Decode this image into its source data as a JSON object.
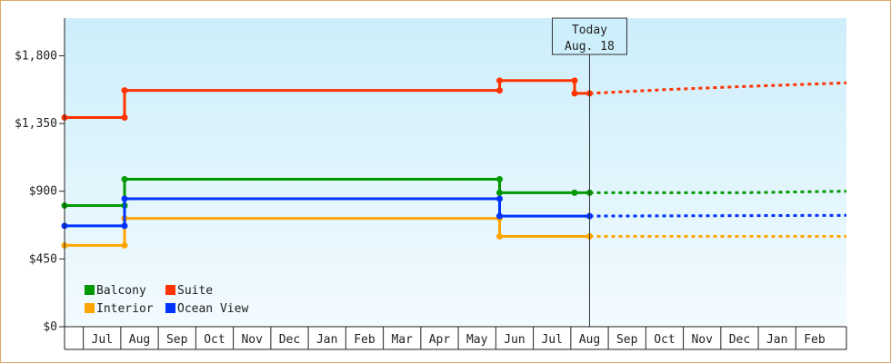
{
  "chart_data": {
    "type": "line",
    "style": "step",
    "title": "",
    "xlabel": "",
    "ylabel": "",
    "ylim": [
      0,
      2050
    ],
    "y_ticks": [
      "$0",
      "$450",
      "$900",
      "$1,350",
      "$1,800"
    ],
    "y_tick_values": [
      0,
      450,
      900,
      1350,
      1800
    ],
    "x_ticks": [
      "Jul",
      "Aug",
      "Sep",
      "Oct",
      "Nov",
      "Dec",
      "Jan",
      "Feb",
      "Mar",
      "Apr",
      "May",
      "Jun",
      "Jul",
      "Aug",
      "Sep",
      "Oct",
      "Nov",
      "Dec",
      "Jan",
      "Feb"
    ],
    "x_tick_months": [
      1,
      2,
      3,
      4,
      5,
      6,
      7,
      8,
      9,
      10,
      11,
      12,
      13,
      14,
      15,
      16,
      17,
      18,
      19,
      20
    ],
    "x_unit": "months since start of June (year 1)",
    "x_range": [
      0.0,
      20.85
    ],
    "today": {
      "line1": "Today",
      "line2": "Aug. 18",
      "x": 14.0
    },
    "grid": false,
    "legend_position": "bottom-left",
    "series": [
      {
        "name": "Balcony",
        "color": "#009900",
        "points": [
          [
            0.0,
            805
          ],
          [
            1.6,
            805
          ],
          [
            1.6,
            980
          ],
          [
            11.6,
            980
          ],
          [
            11.6,
            890
          ],
          [
            13.6,
            890
          ],
          [
            14.0,
            890
          ]
        ],
        "markers": [
          [
            0.0,
            805
          ],
          [
            1.6,
            805
          ],
          [
            1.6,
            980
          ],
          [
            11.6,
            980
          ],
          [
            11.6,
            890
          ],
          [
            13.6,
            890
          ],
          [
            14.0,
            890
          ]
        ],
        "forecast": [
          [
            14.0,
            890
          ],
          [
            18.0,
            890
          ],
          [
            20.85,
            900
          ]
        ]
      },
      {
        "name": "Suite",
        "color": "#ff3300",
        "points": [
          [
            0.0,
            1390
          ],
          [
            1.6,
            1390
          ],
          [
            1.6,
            1570
          ],
          [
            11.6,
            1570
          ],
          [
            11.6,
            1635
          ],
          [
            13.6,
            1635
          ],
          [
            13.6,
            1550
          ],
          [
            14.0,
            1550
          ]
        ],
        "markers": [
          [
            0.0,
            1390
          ],
          [
            1.6,
            1390
          ],
          [
            1.6,
            1570
          ],
          [
            11.6,
            1570
          ],
          [
            11.6,
            1635
          ],
          [
            13.6,
            1635
          ],
          [
            13.6,
            1550
          ],
          [
            14.0,
            1550
          ]
        ],
        "forecast": [
          [
            14.0,
            1550
          ],
          [
            16.0,
            1575
          ],
          [
            18.0,
            1595
          ],
          [
            20.85,
            1620
          ]
        ]
      },
      {
        "name": "Interior",
        "color": "#ffa500",
        "points": [
          [
            0.0,
            540
          ],
          [
            1.6,
            540
          ],
          [
            1.6,
            720
          ],
          [
            11.6,
            720
          ],
          [
            11.6,
            600
          ],
          [
            14.0,
            600
          ]
        ],
        "markers": [
          [
            0.0,
            540
          ],
          [
            1.6,
            540
          ],
          [
            1.6,
            720
          ],
          [
            11.6,
            720
          ],
          [
            11.6,
            600
          ],
          [
            14.0,
            600
          ]
        ],
        "forecast": [
          [
            14.0,
            600
          ],
          [
            20.85,
            600
          ]
        ]
      },
      {
        "name": "Ocean View",
        "color": "#0033ff",
        "points": [
          [
            0.0,
            670
          ],
          [
            1.6,
            670
          ],
          [
            1.6,
            850
          ],
          [
            11.6,
            850
          ],
          [
            11.6,
            735
          ],
          [
            14.0,
            735
          ]
        ],
        "markers": [
          [
            0.0,
            670
          ],
          [
            1.6,
            670
          ],
          [
            1.6,
            850
          ],
          [
            11.6,
            850
          ],
          [
            11.6,
            735
          ],
          [
            14.0,
            735
          ]
        ],
        "forecast": [
          [
            14.0,
            735
          ],
          [
            20.85,
            740
          ]
        ]
      }
    ],
    "legend": [
      {
        "label": "Balcony",
        "color": "#009900"
      },
      {
        "label": "Suite",
        "color": "#ff3300"
      },
      {
        "label": "Interior",
        "color": "#ffa500"
      },
      {
        "label": "Ocean View",
        "color": "#0033ff"
      }
    ]
  }
}
